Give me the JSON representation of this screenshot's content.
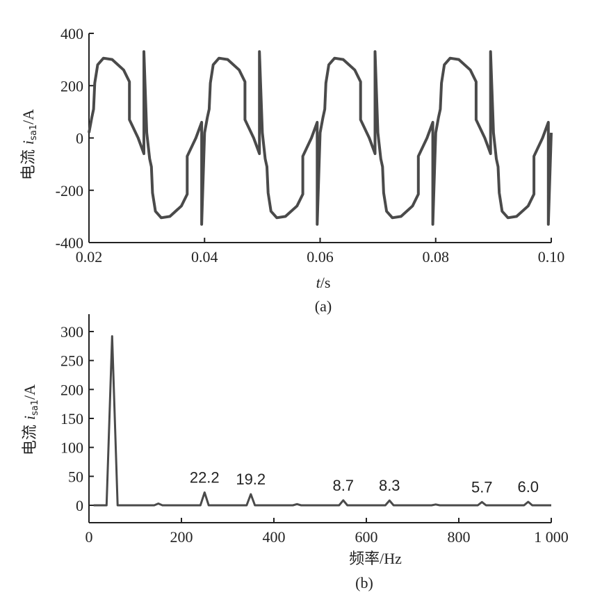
{
  "chart_data": [
    {
      "type": "line",
      "caption": "(a)",
      "ylabel": {
        "main": "电流 ",
        "var": "i",
        "sub": "sa1",
        "unit": "/A"
      },
      "xlabel": {
        "var": "t",
        "unit": "/s"
      },
      "xlim": [
        0.02,
        0.1
      ],
      "ylim": [
        -400,
        400
      ],
      "xticks": [
        0.02,
        0.04,
        0.06,
        0.08,
        0.1
      ],
      "xtick_labels": [
        "0.02",
        "0.04",
        "0.06",
        "0.08",
        "0.10"
      ],
      "yticks": [
        -400,
        -200,
        0,
        200,
        400
      ],
      "ytick_labels": [
        "-400",
        "-200",
        "0",
        "200",
        "400"
      ],
      "series": [
        {
          "period": 0.02,
          "waveform_t": [
            0,
            0.0005,
            0.0008,
            0.001,
            0.0015,
            0.0025,
            0.004,
            0.006,
            0.007,
            0.007,
            0.0085,
            0.0095,
            0.0095,
            0.01,
            0.0105,
            0.0108,
            0.011,
            0.0115,
            0.0125,
            0.014,
            0.016,
            0.017,
            0.017,
            0.0185,
            0.0195,
            0.0195,
            0.02
          ],
          "waveform_y": [
            20,
            80,
            110,
            210,
            280,
            305,
            300,
            260,
            215,
            70,
            0,
            -60,
            330,
            20,
            -80,
            -110,
            -210,
            -280,
            -305,
            -300,
            -260,
            -215,
            -70,
            0,
            60,
            -330,
            20
          ]
        }
      ]
    },
    {
      "type": "bar",
      "caption": "(b)",
      "ylabel": {
        "main": "电流 ",
        "var": "i",
        "sub": "sa1",
        "unit": "/A"
      },
      "xlabel": {
        "main": "频率",
        "unit": "/Hz"
      },
      "xlim": [
        0,
        1000
      ],
      "ylim": [
        -30,
        330
      ],
      "xticks": [
        0,
        200,
        400,
        600,
        800,
        1000
      ],
      "xtick_labels": [
        "0",
        "200",
        "400",
        "600",
        "800",
        "1 000"
      ],
      "yticks": [
        0,
        50,
        100,
        150,
        200,
        250,
        300
      ],
      "ytick_labels": [
        "0",
        "50",
        "100",
        "150",
        "200",
        "250",
        "300"
      ],
      "harmonics_hz": [
        50,
        150,
        250,
        350,
        450,
        550,
        650,
        750,
        850,
        950
      ],
      "harmonics_a": [
        292,
        3,
        22.2,
        19.2,
        2,
        8.7,
        8.3,
        1.5,
        5.7,
        6.0
      ],
      "data_labels": [
        "22.2",
        "19.2",
        "8.7",
        "8.3",
        "5.7",
        "6.0"
      ],
      "data_label_hz": [
        250,
        350,
        550,
        650,
        850,
        950
      ]
    }
  ]
}
